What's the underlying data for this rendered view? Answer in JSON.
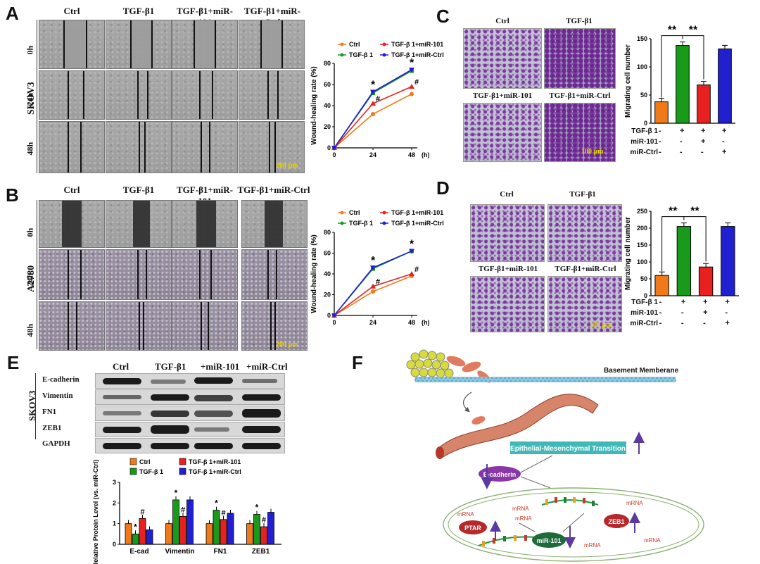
{
  "panels": {
    "A": "A",
    "B": "B",
    "C": "C",
    "D": "D",
    "E": "E",
    "F": "F"
  },
  "groups": [
    "Ctrl",
    "TGF-β1",
    "TGF-β1+miR-101",
    "TGF-β1+miR-Ctrl"
  ],
  "timepoints": [
    "0h",
    "24h",
    "48h"
  ],
  "cell_lines": {
    "a": "SKOV3",
    "b": "A2780",
    "e": "SKOV3"
  },
  "scale_bars": {
    "a": "200 μm",
    "b": "200 μm",
    "c": "100 μm",
    "d": "100 μm"
  },
  "transwell_titles": {
    "tl": "Ctrl",
    "tr": "TGF-β1",
    "bl": "TGF-β1+miR-101",
    "br": "TGF-β1+miR-Ctrl"
  },
  "legend_labels": {
    "ctrl": "Ctrl",
    "tgf": "TGF-β 1",
    "mir101": "TGF-β 1+miR-101",
    "mirctrl": "TGF-β 1+miR-Ctrl"
  },
  "colors": {
    "ctrl": "#f07a1a",
    "tgf": "#1a9a1a",
    "mir101": "#e82020",
    "mirctrl": "#2020d0"
  },
  "treat_rows": {
    "tgf": "TGF-β 1",
    "mir101": "miR-101",
    "mirctrl": "miR-Ctrl"
  },
  "treat_signs": [
    [
      "-",
      "+",
      "+",
      "+"
    ],
    [
      "-",
      "-",
      "+",
      "-"
    ],
    [
      "-",
      "-",
      "-",
      "+"
    ]
  ],
  "western": {
    "headers": [
      "Ctrl",
      "TGF-β1",
      "+miR-101",
      "+miR-Ctrl"
    ],
    "proteins": [
      "E-cadherin",
      "Vimentin",
      "FN1",
      "ZEB1",
      "GAPDH"
    ]
  },
  "diagram": {
    "basement": "Basement Memberane",
    "emt": "Epithelial-Mesenchymal Transition",
    "ecad": "E-cadherin",
    "ptar": "PTAR",
    "zeb1": "ZEB1",
    "mir101": "miR-101"
  },
  "chart_data": [
    {
      "type": "line",
      "id": "A",
      "ylabel": "Wound-healing rate (%)",
      "xunit": "(h)",
      "x": [
        0,
        24,
        48
      ],
      "ylim": [
        0,
        80
      ],
      "yticks": [
        0,
        20,
        40,
        60,
        80
      ],
      "series": [
        {
          "name": "Ctrl",
          "values": [
            0,
            32,
            51
          ]
        },
        {
          "name": "TGF-β 1",
          "values": [
            0,
            52,
            73
          ]
        },
        {
          "name": "TGF-β 1+miR-101",
          "values": [
            0,
            42,
            58
          ]
        },
        {
          "name": "TGF-β 1+miR-Ctrl",
          "values": [
            0,
            53,
            74
          ]
        }
      ],
      "annotations": [
        {
          "x": 24,
          "text": "*"
        },
        {
          "x": 24,
          "text": "#"
        },
        {
          "x": 48,
          "text": "*"
        },
        {
          "x": 48,
          "text": "#"
        }
      ]
    },
    {
      "type": "line",
      "id": "B",
      "ylabel": "Wound-healing rate (%)",
      "xunit": "(h)",
      "x": [
        0,
        24,
        48
      ],
      "ylim": [
        0,
        80
      ],
      "yticks": [
        0,
        20,
        40,
        60,
        80
      ],
      "series": [
        {
          "name": "Ctrl",
          "values": [
            0,
            23,
            38
          ]
        },
        {
          "name": "TGF-β 1",
          "values": [
            0,
            45,
            62
          ]
        },
        {
          "name": "TGF-β 1+miR-101",
          "values": [
            0,
            28,
            40
          ]
        },
        {
          "name": "TGF-β 1+miR-Ctrl",
          "values": [
            0,
            46,
            62
          ]
        }
      ],
      "annotations": [
        {
          "x": 24,
          "text": "*"
        },
        {
          "x": 24,
          "text": "#"
        },
        {
          "x": 48,
          "text": "*"
        },
        {
          "x": 48,
          "text": "#"
        }
      ]
    },
    {
      "type": "bar",
      "id": "C",
      "ylabel": "Migrating cell number",
      "ylim": [
        0,
        150
      ],
      "yticks": [
        0,
        50,
        100,
        150
      ],
      "values": [
        38,
        138,
        68,
        132
      ],
      "significance": [
        "**",
        "**"
      ]
    },
    {
      "type": "bar",
      "id": "D",
      "ylabel": "Migrating cell number",
      "ylim": [
        0,
        250
      ],
      "yticks": [
        0,
        50,
        100,
        150,
        200,
        250
      ],
      "values": [
        60,
        205,
        85,
        205
      ],
      "significance": [
        "**",
        "**"
      ]
    },
    {
      "type": "bar",
      "id": "E",
      "ylabel": "Relative Protein Level (vs. miR-Ctrl)",
      "ylim": [
        0,
        3
      ],
      "yticks": [
        0,
        1,
        2,
        3
      ],
      "categories": [
        "E-cad",
        "Vimentin",
        "FN1",
        "ZEB1"
      ],
      "series": [
        {
          "name": "Ctrl",
          "values": [
            1,
            1,
            1,
            1
          ]
        },
        {
          "name": "TGF-β 1",
          "values": [
            0.5,
            2.15,
            1.65,
            1.45
          ]
        },
        {
          "name": "TGF-β 1+miR-101",
          "values": [
            1.25,
            1.35,
            1.2,
            0.85
          ]
        },
        {
          "name": "TGF-β 1+miR-Ctrl",
          "values": [
            0.7,
            2.15,
            1.5,
            1.55
          ]
        }
      ],
      "annotations": [
        "*",
        "#",
        "*",
        "#",
        "*",
        "#",
        "*",
        "#"
      ]
    }
  ]
}
